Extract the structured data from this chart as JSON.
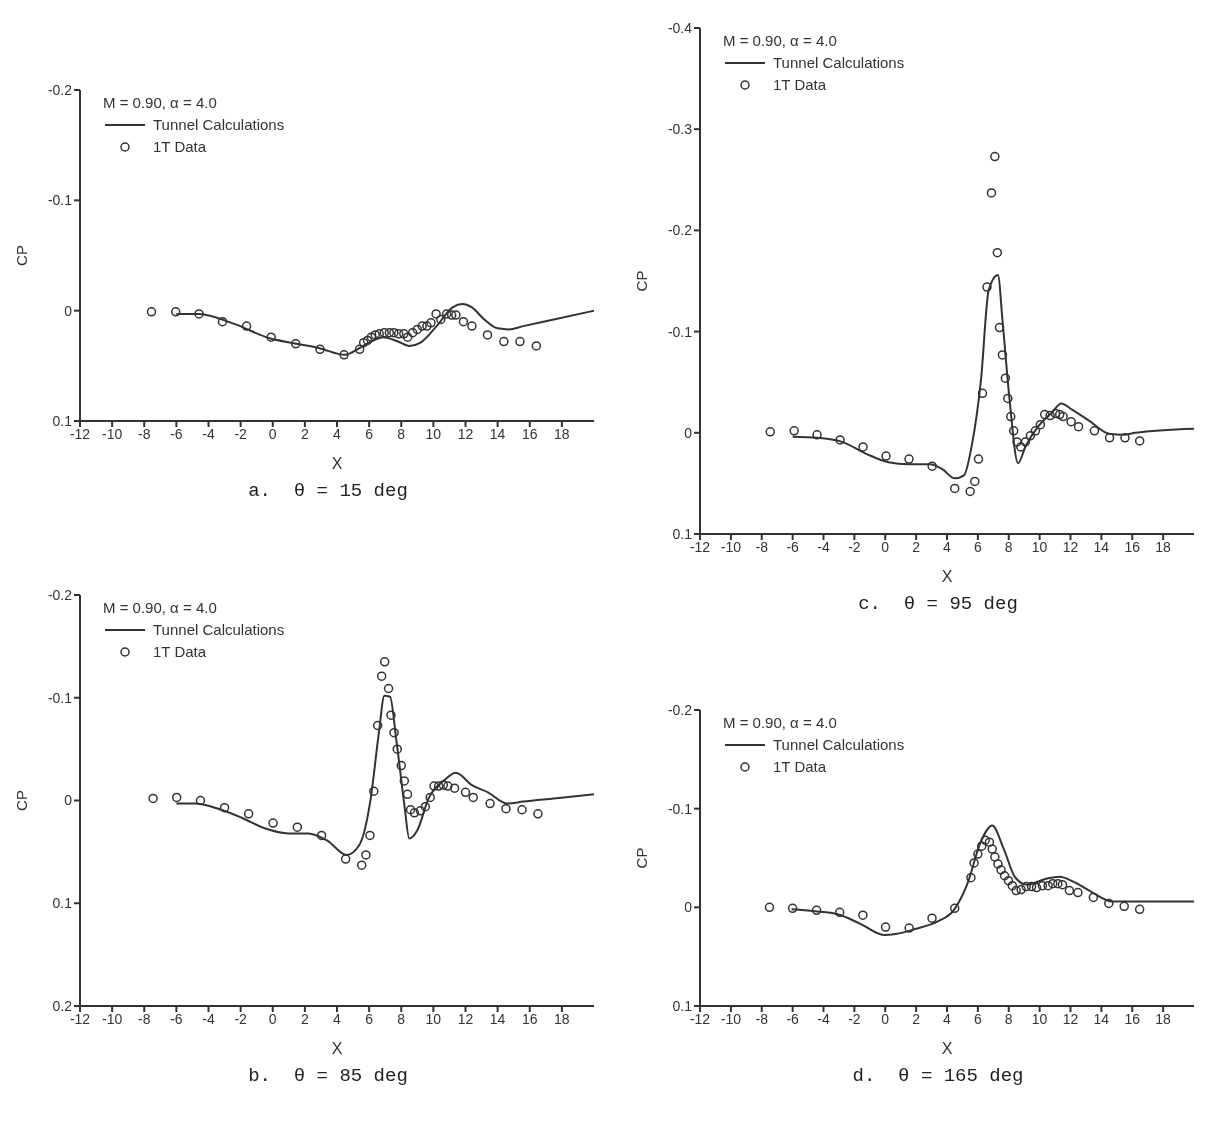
{
  "chart_data": [
    {
      "type": "line",
      "title": "a.  θ = 15 deg",
      "xlabel": "X",
      "ylabel": "CP",
      "legend_title": "M = 0.90, α = 4.0",
      "legend": "top left",
      "grid": false,
      "xlim": [
        -12,
        20
      ],
      "xticks": [
        -12,
        -10,
        -8,
        -6,
        -4,
        -2,
        0,
        2,
        4,
        6,
        8,
        10,
        12,
        14,
        16,
        18
      ],
      "ylim": [
        0.1,
        -0.2
      ],
      "yticks": [
        -0.2,
        -0.1,
        0,
        0.1
      ],
      "series": [
        {
          "name": "Tunnel Calculations",
          "type": "line",
          "color": "#333333",
          "line_style": "solid",
          "x": [
            -6.0,
            -4.6,
            -2.4,
            -0.2,
            1.5,
            2.9,
            4.5,
            5.4,
            6.1,
            6.9,
            7.8,
            8.5,
            9.2,
            10.2,
            11.2,
            11.8,
            12.4,
            13.1,
            14.0,
            14.7,
            15.6,
            17.5,
            20.0
          ],
          "values": [
            0.003,
            0.003,
            0.012,
            0.025,
            0.03,
            0.034,
            0.04,
            0.034,
            0.028,
            0.024,
            0.028,
            0.032,
            0.029,
            0.014,
            -0.003,
            -0.006,
            -0.003,
            0.007,
            0.016,
            0.017,
            0.014,
            0.008,
            0.0
          ]
        },
        {
          "name": "1T Data",
          "type": "scatter",
          "marker": "circle",
          "color": "#333333",
          "x": [
            -7.55,
            -6.04,
            -4.59,
            -3.13,
            -1.63,
            -0.1,
            1.43,
            2.94,
            4.44,
            5.41,
            5.66,
            5.9,
            6.14,
            6.38,
            6.63,
            6.94,
            7.26,
            7.54,
            7.84,
            8.16,
            8.4,
            8.71,
            9.0,
            9.3,
            9.6,
            9.85,
            10.17,
            10.46,
            10.83,
            11.14,
            11.4,
            11.87,
            12.4,
            13.37,
            14.39,
            15.39,
            16.41
          ],
          "values": [
            0.001,
            0.001,
            0.003,
            0.01,
            0.014,
            0.024,
            0.03,
            0.035,
            0.04,
            0.035,
            0.029,
            0.027,
            0.024,
            0.022,
            0.021,
            0.02,
            0.02,
            0.02,
            0.021,
            0.021,
            0.024,
            0.02,
            0.017,
            0.014,
            0.014,
            0.011,
            0.003,
            0.008,
            0.003,
            0.004,
            0.004,
            0.01,
            0.014,
            0.022,
            0.028,
            0.028,
            0.032
          ]
        }
      ]
    },
    {
      "type": "line",
      "title": "c.  θ = 95 deg",
      "xlabel": "X",
      "ylabel": "CP",
      "legend_title": "M = 0.90, α = 4.0",
      "legend": "top left",
      "grid": false,
      "xlim": [
        -12,
        20
      ],
      "xticks": [
        -12,
        -10,
        -8,
        -6,
        -4,
        -2,
        0,
        2,
        4,
        6,
        8,
        10,
        12,
        14,
        16,
        18
      ],
      "ylim": [
        0.1,
        -0.4
      ],
      "yticks": [
        -0.4,
        -0.3,
        -0.2,
        -0.1,
        0,
        0.1
      ],
      "series": [
        {
          "name": "Tunnel Calculations",
          "type": "line",
          "color": "#333333",
          "line_style": "solid",
          "x": [
            -6.0,
            -4.4,
            -2.8,
            -1.2,
            0.2,
            1.5,
            2.9,
            3.7,
            4.5,
            5.1,
            5.6,
            6.2,
            6.7,
            7.3,
            7.6,
            8.05,
            8.6,
            9.1,
            9.9,
            10.8,
            11.4,
            12.1,
            13.2,
            14.5,
            15.4,
            16.2,
            20.0
          ],
          "values": [
            0.004,
            0.005,
            0.009,
            0.021,
            0.029,
            0.031,
            0.031,
            0.036,
            0.045,
            0.042,
            0.013,
            -0.052,
            -0.141,
            -0.156,
            -0.11,
            -0.033,
            0.03,
            0.013,
            -0.006,
            -0.02,
            -0.029,
            -0.023,
            -0.012,
            0.001,
            0.002,
            0.0,
            -0.004
          ]
        },
        {
          "name": "1T Data",
          "type": "scatter",
          "marker": "circle",
          "color": "#333333",
          "x": [
            -7.45,
            -5.9,
            -4.42,
            -2.93,
            -1.44,
            0.05,
            1.54,
            3.04,
            4.5,
            5.5,
            5.8,
            6.04,
            6.3,
            6.59,
            6.88,
            7.1,
            7.26,
            7.4,
            7.59,
            7.78,
            7.94,
            8.13,
            8.32,
            8.54,
            8.78,
            9.08,
            9.4,
            9.73,
            10.05,
            10.33,
            10.68,
            11.03,
            11.3,
            11.52,
            12.04,
            12.52,
            13.55,
            14.53,
            15.53,
            16.48
          ],
          "values": [
            -0.001,
            -0.002,
            0.002,
            0.007,
            0.014,
            0.023,
            0.026,
            0.033,
            0.055,
            0.058,
            0.048,
            0.026,
            -0.039,
            -0.144,
            -0.237,
            -0.273,
            -0.178,
            -0.104,
            -0.077,
            -0.054,
            -0.034,
            -0.016,
            -0.002,
            0.009,
            0.014,
            0.009,
            0.003,
            -0.002,
            -0.008,
            -0.018,
            -0.017,
            -0.019,
            -0.018,
            -0.016,
            -0.011,
            -0.006,
            -0.002,
            0.005,
            0.005,
            0.008
          ]
        }
      ]
    },
    {
      "type": "line",
      "title": "b.  θ = 85 deg",
      "xlabel": "X",
      "ylabel": "CP",
      "legend_title": "M = 0.90, α = 4.0",
      "legend": "top left",
      "grid": false,
      "xlim": [
        -12,
        20
      ],
      "xticks": [
        -12,
        -10,
        -8,
        -6,
        -4,
        -2,
        0,
        2,
        4,
        6,
        8,
        10,
        12,
        14,
        16,
        18
      ],
      "ylim": [
        0.2,
        -0.2
      ],
      "yticks": [
        -0.2,
        -0.1,
        0,
        0.1,
        0.2
      ],
      "series": [
        {
          "name": "Tunnel Calculations",
          "type": "line",
          "color": "#333333",
          "line_style": "solid",
          "x": [
            -6.0,
            -4.85,
            -3.4,
            -1.9,
            -0.5,
            1.0,
            2.2,
            3.4,
            4.6,
            5.4,
            6.1,
            6.6,
            6.95,
            7.3,
            7.7,
            8.2,
            8.5,
            9.0,
            9.7,
            10.7,
            11.4,
            12.4,
            13.4,
            14.6,
            15.6,
            17.5,
            20.0
          ],
          "values": [
            0.003,
            0.003,
            0.008,
            0.017,
            0.027,
            0.032,
            0.032,
            0.039,
            0.053,
            0.043,
            -0.002,
            -0.065,
            -0.102,
            -0.101,
            -0.058,
            0.005,
            0.037,
            0.029,
            -0.002,
            -0.02,
            -0.027,
            -0.015,
            -0.008,
            0.003,
            0.001,
            -0.002,
            -0.006
          ]
        },
        {
          "name": "1T Data",
          "type": "scatter",
          "marker": "circle",
          "color": "#333333",
          "x": [
            -7.45,
            -5.98,
            -4.5,
            -3.0,
            -1.5,
            0.02,
            1.53,
            3.04,
            4.54,
            5.54,
            5.8,
            6.05,
            6.29,
            6.53,
            6.78,
            6.97,
            7.21,
            7.36,
            7.55,
            7.75,
            8.0,
            8.19,
            8.39,
            8.58,
            8.82,
            9.19,
            9.5,
            9.8,
            10.04,
            10.33,
            10.62,
            10.9,
            11.32,
            12.0,
            12.48,
            13.53,
            14.52,
            15.52,
            16.51
          ],
          "values": [
            -0.002,
            -0.003,
            0.0,
            0.007,
            0.013,
            0.022,
            0.026,
            0.034,
            0.057,
            0.063,
            0.053,
            0.034,
            -0.009,
            -0.073,
            -0.121,
            -0.135,
            -0.109,
            -0.083,
            -0.066,
            -0.05,
            -0.034,
            -0.019,
            -0.006,
            0.009,
            0.012,
            0.01,
            0.006,
            -0.003,
            -0.014,
            -0.014,
            -0.015,
            -0.014,
            -0.012,
            -0.008,
            -0.003,
            0.003,
            0.008,
            0.009,
            0.013
          ]
        }
      ]
    },
    {
      "type": "line",
      "title": "d.  θ = 165 deg",
      "xlabel": "X",
      "ylabel": "CP",
      "legend_title": "M = 0.90, α = 4.0",
      "legend": "top left",
      "grid": false,
      "xlim": [
        -12,
        20
      ],
      "xticks": [
        -12,
        -10,
        -8,
        -6,
        -4,
        -2,
        0,
        2,
        4,
        6,
        8,
        10,
        12,
        14,
        16,
        18
      ],
      "ylim": [
        0.1,
        -0.2
      ],
      "yticks": [
        -0.2,
        -0.1,
        0,
        0.1
      ],
      "series": [
        {
          "name": "Tunnel Calculations",
          "type": "line",
          "color": "#333333",
          "line_style": "solid",
          "x": [
            -6.07,
            -4.58,
            -3.08,
            -1.58,
            -0.08,
            0.68,
            1.93,
            3.43,
            4.43,
            5.3,
            6.18,
            6.93,
            7.68,
            8.43,
            9.18,
            10.43,
            11.3,
            12.18,
            13.43,
            14.68,
            15.93,
            20.0
          ],
          "values": [
            0.002,
            0.004,
            0.007,
            0.017,
            0.028,
            0.027,
            0.022,
            0.014,
            0.003,
            -0.023,
            -0.066,
            -0.083,
            -0.059,
            -0.03,
            -0.023,
            -0.029,
            -0.031,
            -0.026,
            -0.015,
            -0.006,
            -0.006,
            -0.006
          ]
        },
        {
          "name": "1T Data",
          "type": "scatter",
          "marker": "circle",
          "color": "#333333",
          "x": [
            -7.5,
            -6.0,
            -4.45,
            -2.95,
            -1.45,
            0.02,
            1.55,
            3.03,
            4.5,
            5.55,
            5.75,
            6.0,
            6.25,
            6.48,
            6.75,
            6.93,
            7.1,
            7.3,
            7.5,
            7.73,
            7.98,
            8.23,
            8.48,
            8.8,
            9.13,
            9.48,
            9.8,
            10.18,
            10.55,
            10.85,
            11.18,
            11.48,
            11.93,
            12.48,
            13.48,
            14.48,
            15.48,
            16.48
          ],
          "values": [
            0.0,
            0.001,
            0.003,
            0.005,
            0.008,
            0.02,
            0.021,
            0.011,
            0.001,
            -0.03,
            -0.045,
            -0.054,
            -0.062,
            -0.068,
            -0.066,
            -0.059,
            -0.051,
            -0.044,
            -0.038,
            -0.032,
            -0.027,
            -0.022,
            -0.017,
            -0.018,
            -0.021,
            -0.021,
            -0.02,
            -0.022,
            -0.022,
            -0.024,
            -0.024,
            -0.023,
            -0.017,
            -0.015,
            -0.01,
            -0.004,
            -0.001,
            0.002
          ]
        }
      ]
    }
  ]
}
